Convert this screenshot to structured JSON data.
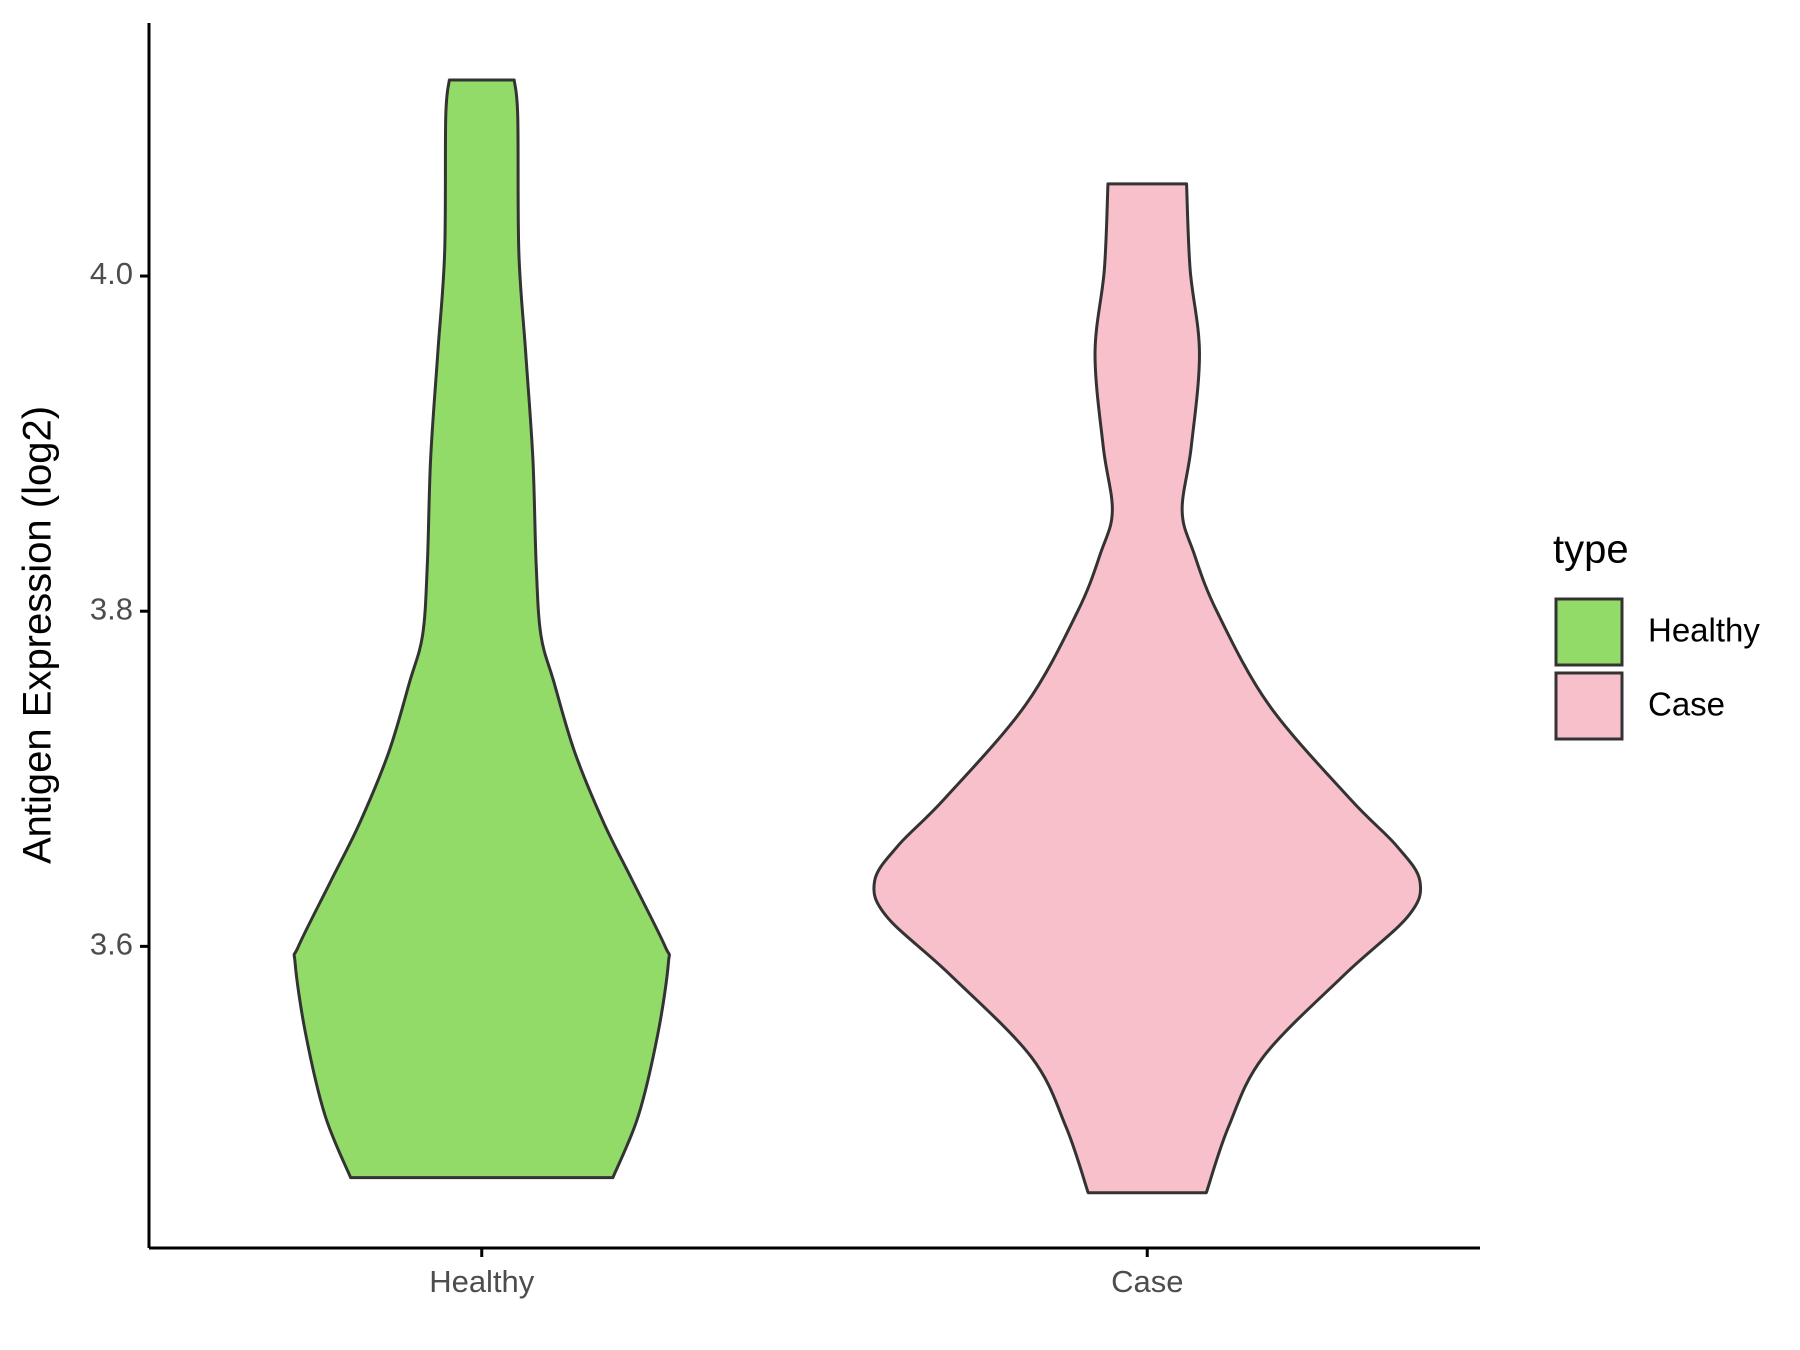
{
  "chart_data": {
    "type": "violin",
    "y_label": "Antigen Expression (log2)",
    "categories": [
      "Healthy",
      "Case"
    ],
    "legend_title": "type",
    "legend_position": "right",
    "grid": false,
    "ylim": [
      3.42,
      4.151
    ],
    "yticks": [
      3.6,
      3.8,
      {
        "value": 4,
        "label": "4.0"
      }
    ],
    "series": [
      {
        "name": "Healthy",
        "color": "#93db69",
        "y": [
          4.117,
          4.095,
          4.014,
          3.954,
          3.891,
          3.828,
          3.786,
          3.758,
          3.716,
          3.674,
          3.639,
          3.6,
          3.59,
          3.548,
          3.499,
          3.462
        ],
        "density": [
          0.118,
          0.131,
          0.135,
          0.16,
          0.186,
          0.198,
          0.215,
          0.262,
          0.338,
          0.443,
          0.549,
          0.667,
          0.679,
          0.641,
          0.57,
          0.477
        ]
      },
      {
        "name": "Case",
        "color": "#f8c0cb",
        "y": [
          4.055,
          4.004,
          3.954,
          3.898,
          3.86,
          3.835,
          3.8,
          3.744,
          3.688,
          3.66,
          3.639,
          3.618,
          3.583,
          3.534,
          3.492,
          3.453
        ],
        "density": [
          0.143,
          0.156,
          0.19,
          0.16,
          0.127,
          0.169,
          0.253,
          0.443,
          0.738,
          0.907,
          0.992,
          0.949,
          0.717,
          0.422,
          0.295,
          0.215
        ]
      }
    ]
  }
}
